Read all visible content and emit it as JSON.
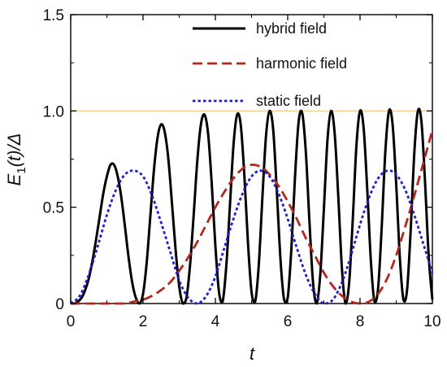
{
  "chart_data": {
    "type": "line",
    "title": "",
    "xlabel": "t",
    "ylabel": {
      "parts": [
        "E",
        "1",
        "(t)/Δ"
      ]
    },
    "xlim": [
      0,
      10
    ],
    "ylim": [
      0,
      1.5
    ],
    "x_ticks": [
      "0",
      "2",
      "4",
      "6",
      "8",
      "10"
    ],
    "y_ticks": [
      "0",
      "0.5",
      "1.0",
      "1.5"
    ],
    "reference_line": {
      "y": 1.0,
      "color": "#f2c27b"
    },
    "grid": false,
    "legend_position": "top-center",
    "series": [
      {
        "name": "hybrid field",
        "color": "#000000",
        "style": "solid",
        "x": [
          0,
          0.1,
          0.2,
          0.3,
          0.4,
          0.5,
          0.6,
          0.7,
          0.8,
          0.9,
          1.0,
          1.1,
          1.2,
          1.3,
          1.4,
          1.5,
          1.6,
          1.7,
          1.8,
          1.9,
          2.0,
          2.1,
          2.2,
          2.3,
          2.4,
          2.5,
          2.6,
          2.7,
          2.8,
          2.9,
          3.0,
          3.1,
          3.2,
          3.3,
          3.4,
          3.5,
          3.6,
          3.7,
          3.8,
          3.9,
          4.0,
          4.1,
          4.2,
          4.3,
          4.4,
          4.5,
          4.6,
          4.7,
          4.8,
          4.9,
          5.0,
          5.1,
          5.2,
          5.3,
          5.4,
          5.5,
          5.6,
          5.7,
          5.8,
          5.9,
          6.0,
          6.1,
          6.2,
          6.3,
          6.4,
          6.5,
          6.6,
          6.7,
          6.8,
          6.9,
          7.0,
          7.1,
          7.2,
          7.3,
          7.4,
          7.5,
          7.6,
          7.7,
          7.8,
          7.9,
          8.0,
          8.1,
          8.2,
          8.3,
          8.4,
          8.5,
          8.6,
          8.7,
          8.8,
          8.9,
          9.0,
          9.1,
          9.2,
          9.3,
          9.4,
          9.5,
          9.6,
          9.7,
          9.8,
          9.9,
          10.0
        ],
        "y": [
          0,
          0.0,
          0.01,
          0.03,
          0.07,
          0.13,
          0.22,
          0.33,
          0.45,
          0.57,
          0.66,
          0.72,
          0.72,
          0.66,
          0.55,
          0.4,
          0.24,
          0.11,
          0.03,
          0.0,
          0.05,
          0.21,
          0.45,
          0.69,
          0.86,
          0.93,
          0.89,
          0.75,
          0.52,
          0.28,
          0.09,
          0.0,
          0.03,
          0.2,
          0.46,
          0.74,
          0.93,
          0.98,
          0.88,
          0.62,
          0.3,
          0.06,
          0.01,
          0.19,
          0.5,
          0.82,
          0.98,
          0.93,
          0.67,
          0.32,
          0.06,
          0.01,
          0.2,
          0.55,
          0.87,
          1.0,
          0.9,
          0.58,
          0.23,
          0.02,
          0.03,
          0.28,
          0.65,
          0.94,
          0.99,
          0.79,
          0.43,
          0.11,
          0.0,
          0.15,
          0.49,
          0.85,
          1.0,
          0.88,
          0.55,
          0.18,
          0.0,
          0.11,
          0.44,
          0.82,
          1.0,
          0.91,
          0.59,
          0.22,
          0.01,
          0.08,
          0.4,
          0.79,
          1.0,
          0.93,
          0.62,
          0.24,
          0.02,
          0.07,
          0.38,
          0.78,
          1.0,
          0.94,
          0.62,
          0.24,
          0.02
        ]
      },
      {
        "name": "harmonic field",
        "color": "#b5271b",
        "style": "dashed",
        "x": [
          0,
          0.25,
          0.5,
          0.75,
          1.0,
          1.25,
          1.5,
          1.75,
          2.0,
          2.25,
          2.5,
          2.75,
          3.0,
          3.25,
          3.5,
          3.75,
          4.0,
          4.25,
          4.5,
          4.75,
          5.0,
          5.25,
          5.5,
          5.75,
          6.0,
          6.25,
          6.5,
          6.75,
          7.0,
          7.25,
          7.5,
          7.75,
          8.0,
          8.25,
          8.5,
          8.75,
          9.0,
          9.25,
          9.5,
          9.75,
          10.0
        ],
        "y": [
          0,
          0.0,
          0.0,
          0.0,
          0.0,
          0.0,
          0.0,
          0.01,
          0.02,
          0.04,
          0.07,
          0.11,
          0.17,
          0.24,
          0.32,
          0.41,
          0.5,
          0.58,
          0.65,
          0.7,
          0.72,
          0.71,
          0.67,
          0.61,
          0.53,
          0.44,
          0.34,
          0.25,
          0.16,
          0.09,
          0.04,
          0.01,
          0.0,
          0.01,
          0.05,
          0.13,
          0.25,
          0.4,
          0.56,
          0.73,
          0.9
        ]
      },
      {
        "name": "static field",
        "color": "#1f1fd1",
        "style": "dotted",
        "x": [
          0,
          0.25,
          0.5,
          0.75,
          1.0,
          1.25,
          1.5,
          1.75,
          2.0,
          2.25,
          2.5,
          2.75,
          3.0,
          3.25,
          3.5,
          3.75,
          4.0,
          4.25,
          4.5,
          4.75,
          5.0,
          5.25,
          5.5,
          5.75,
          6.0,
          6.25,
          6.5,
          6.75,
          7.0,
          7.25,
          7.5,
          7.75,
          8.0,
          8.25,
          8.5,
          8.75,
          9.0,
          9.25,
          9.5,
          9.75,
          10.0
        ],
        "y": [
          0,
          0.04,
          0.15,
          0.3,
          0.46,
          0.59,
          0.67,
          0.69,
          0.66,
          0.56,
          0.42,
          0.27,
          0.12,
          0.03,
          0.0,
          0.04,
          0.14,
          0.29,
          0.44,
          0.57,
          0.66,
          0.69,
          0.66,
          0.57,
          0.44,
          0.29,
          0.15,
          0.05,
          0.0,
          0.02,
          0.11,
          0.25,
          0.41,
          0.55,
          0.65,
          0.69,
          0.67,
          0.59,
          0.46,
          0.31,
          0.16
        ]
      }
    ]
  }
}
